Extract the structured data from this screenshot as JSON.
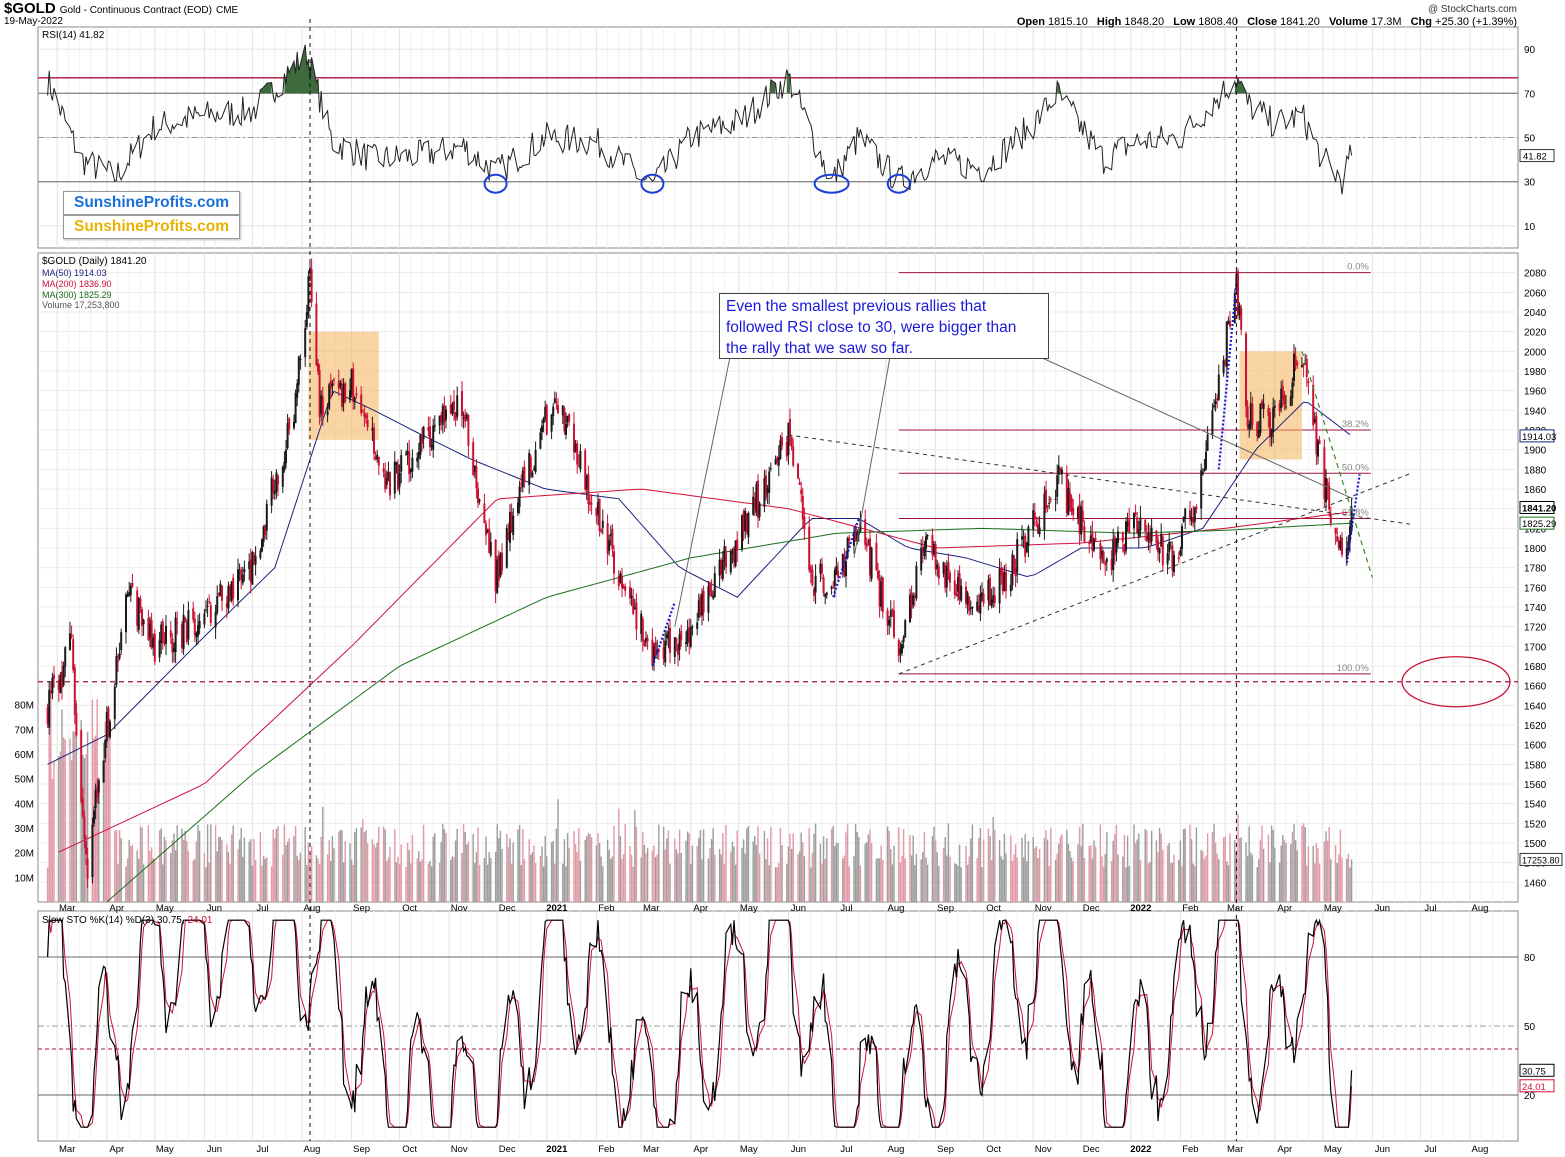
{
  "header": {
    "ticker": "$GOLD",
    "description": "Gold - Continuous Contract (EOD)",
    "exchange": "CME",
    "date": "19-May-2022",
    "open_label": "Open",
    "open": "1815.10",
    "high_label": "High",
    "high": "1848.20",
    "low_label": "Low",
    "low": "1808.40",
    "close_label": "Close",
    "close": "1841.20",
    "volume_label": "Volume",
    "volume": "17.3M",
    "chg_label": "Chg",
    "chg": "+25.30 (+1.39%)",
    "credit": "@ StockCharts.com"
  },
  "logos": {
    "line1": "SunshineProfits.com",
    "line2": "SunshineProfits.com"
  },
  "callout": "Even the smallest previous rallies that followed RSI close to 30, were bigger than the rally that we saw so far.",
  "legend": {
    "rsi": "RSI(14) 41.82",
    "price": "$GOLD (Daily) 1841.20",
    "ma50": "MA(50) 1914.03",
    "ma200": "MA(200) 1836.90",
    "ma300": "MA(300) 1825.29",
    "volume": "Volume 17,253,800",
    "sto_main": "Slow STO %K(14) %D(3) 30.75,",
    "sto_d": "24.01"
  },
  "colors": {
    "up": "#1a1a1a",
    "down": "#cc1133",
    "ma50": "#1a237e",
    "ma200": "#d0103a",
    "ma300": "#1b6e1b",
    "rsi_fill": "#3d6b3d",
    "sto_k": "#000000",
    "sto_d": "#d0103a",
    "callout_text": "#1a1ad8",
    "fib": "#a01040",
    "box": "#f5b25a",
    "circle": "#1a3fd8"
  },
  "chart_data": [
    {
      "type": "line",
      "name": "rsi_panel",
      "title": "RSI(14) 41.82",
      "ylim": [
        0,
        100
      ],
      "y_ticks": [
        10,
        30,
        50,
        70,
        90
      ],
      "reference_lines": [
        30,
        50,
        70,
        77
      ],
      "last_value_label": "41.82",
      "x": [
        "2020-02-24",
        "2020-03-16",
        "2020-04-06",
        "2020-05-01",
        "2020-06-01",
        "2020-07-01",
        "2020-08-04",
        "2020-08-20",
        "2020-09-15",
        "2020-10-15",
        "2020-11-10",
        "2020-11-30",
        "2020-12-31",
        "2021-02-01",
        "2021-03-08",
        "2021-04-01",
        "2021-05-03",
        "2021-06-01",
        "2021-06-28",
        "2021-07-15",
        "2021-08-09",
        "2021-09-01",
        "2021-10-01",
        "2021-11-01",
        "2021-11-16",
        "2021-12-15",
        "2022-01-03",
        "2022-02-01",
        "2022-03-08",
        "2022-03-15",
        "2022-04-01",
        "2022-04-18",
        "2022-05-01",
        "2022-05-13",
        "2022-05-19"
      ],
      "y": [
        76,
        40,
        32,
        55,
        60,
        62,
        88,
        48,
        40,
        42,
        46,
        34,
        50,
        48,
        28,
        50,
        58,
        77,
        30,
        50,
        30,
        40,
        36,
        56,
        70,
        40,
        48,
        50,
        77,
        65,
        56,
        60,
        40,
        31,
        41.82
      ],
      "marked_oversold": [
        "2020-11-30",
        "2021-03-08",
        "2021-06-28",
        "2021-08-09"
      ]
    },
    {
      "type": "line",
      "name": "price_panel",
      "title": "$GOLD (Daily) 1841.20",
      "ylim": [
        1440,
        2100
      ],
      "y_ticks": [
        1460,
        1480,
        1500,
        1520,
        1540,
        1560,
        1580,
        1600,
        1620,
        1640,
        1660,
        1680,
        1700,
        1720,
        1740,
        1760,
        1780,
        1800,
        1820,
        1840,
        1860,
        1880,
        1900,
        1920,
        1940,
        1960,
        1980,
        2000,
        2020,
        2040,
        2060,
        2080
      ],
      "x_ticks": [
        "Mar",
        "Apr",
        "May",
        "Jun",
        "Jul",
        "Aug",
        "Sep",
        "Oct",
        "Nov",
        "Dec",
        "2021",
        "Feb",
        "Mar",
        "Apr",
        "May",
        "Jun",
        "Jul",
        "Aug",
        "Sep",
        "Oct",
        "Nov",
        "Dec",
        "2022",
        "Feb",
        "Mar",
        "Apr",
        "May",
        "Jun",
        "Jul",
        "Aug"
      ],
      "last_value_labels": [
        "1914.03",
        "1841.20",
        "1825.29"
      ],
      "series": [
        {
          "name": "$GOLD (Daily)",
          "x": [
            "2020-02-24",
            "2020-03-10",
            "2020-03-19",
            "2020-04-14",
            "2020-05-01",
            "2020-06-01",
            "2020-07-01",
            "2020-07-27",
            "2020-08-06",
            "2020-08-12",
            "2020-09-01",
            "2020-09-24",
            "2020-10-15",
            "2020-11-09",
            "2020-11-30",
            "2020-12-15",
            "2021-01-06",
            "2021-02-01",
            "2021-03-08",
            "2021-03-31",
            "2021-04-20",
            "2021-05-10",
            "2021-06-01",
            "2021-06-17",
            "2021-06-29",
            "2021-07-15",
            "2021-08-09",
            "2021-08-25",
            "2021-09-29",
            "2021-10-15",
            "2021-11-16",
            "2021-12-15",
            "2022-01-03",
            "2022-01-28",
            "2022-02-15",
            "2022-03-08",
            "2022-03-15",
            "2022-04-01",
            "2022-04-18",
            "2022-05-01",
            "2022-05-13",
            "2022-05-19"
          ],
          "y": [
            1640,
            1700,
            1470,
            1760,
            1700,
            1730,
            1780,
            1940,
            2080,
            1940,
            1970,
            1860,
            1910,
            1950,
            1770,
            1860,
            1950,
            1840,
            1690,
            1710,
            1780,
            1840,
            1910,
            1770,
            1760,
            1820,
            1700,
            1800,
            1740,
            1770,
            1870,
            1780,
            1830,
            1790,
            1870,
            2070,
            1930,
            1930,
            2000,
            1870,
            1790,
            1841.2
          ]
        },
        {
          "name": "MA(50)",
          "x": [
            "2020-02-24",
            "2020-04-01",
            "2020-06-01",
            "2020-07-15",
            "2020-08-20",
            "2020-09-15",
            "2020-10-15",
            "2020-11-15",
            "2020-12-31",
            "2021-02-15",
            "2021-03-25",
            "2021-04-30",
            "2021-06-15",
            "2021-07-15",
            "2021-08-15",
            "2021-09-20",
            "2021-10-30",
            "2021-12-01",
            "2022-01-10",
            "2022-02-15",
            "2022-03-20",
            "2022-04-20",
            "2022-05-19"
          ],
          "y": [
            1580,
            1610,
            1710,
            1780,
            1960,
            1940,
            1915,
            1890,
            1860,
            1850,
            1780,
            1750,
            1830,
            1830,
            1800,
            1790,
            1770,
            1800,
            1800,
            1820,
            1900,
            1950,
            1914.03
          ]
        },
        {
          "name": "MA(200)",
          "x": [
            "2020-03-01",
            "2020-06-01",
            "2020-09-01",
            "2020-12-01",
            "2021-03-01",
            "2021-06-01",
            "2021-09-01",
            "2021-12-01",
            "2022-03-01",
            "2022-05-19"
          ],
          "y": [
            1490,
            1560,
            1700,
            1850,
            1860,
            1840,
            1800,
            1805,
            1820,
            1836.9
          ]
        },
        {
          "name": "MA(300)",
          "x": [
            "2020-04-01",
            "2020-07-01",
            "2020-10-01",
            "2021-01-01",
            "2021-04-01",
            "2021-07-01",
            "2021-10-01",
            "2022-01-01",
            "2022-03-01",
            "2022-05-19"
          ],
          "y": [
            1440,
            1570,
            1680,
            1750,
            1790,
            1815,
            1820,
            1815,
            1818,
            1825.29
          ]
        }
      ],
      "fibonacci": [
        {
          "label": "0.0%",
          "value": 2080
        },
        {
          "label": "38.2%",
          "value": 1920
        },
        {
          "label": "50.0%",
          "value": 1876
        },
        {
          "label": "61.8%",
          "value": 1830
        },
        {
          "label": "100.0%",
          "value": 1672
        }
      ],
      "support_line": 1664,
      "trendlines": [
        {
          "x": [
            "2021-06-01",
            "2022-05-31"
          ],
          "y": [
            1915,
            1830
          ]
        },
        {
          "x": [
            "2021-08-09",
            "2022-05-31"
          ],
          "y": [
            1672,
            1860
          ]
        }
      ]
    },
    {
      "type": "bar",
      "name": "volume",
      "title": "Volume 17,253,800",
      "ylim": [
        0,
        90000000
      ],
      "y_ticks": [
        "10M",
        "20M",
        "30M",
        "40M",
        "50M",
        "60M",
        "70M",
        "80M"
      ],
      "last_value_label": "17253.80",
      "x": [
        "2020-03-15",
        "2020-08-07",
        "2020-11-10",
        "2021-02-26",
        "2021-06-18",
        "2021-11-05",
        "2022-02-24",
        "2022-03-08",
        "2022-05-19"
      ],
      "values": [
        85000000,
        42000000,
        48000000,
        38000000,
        30000000,
        36000000,
        35000000,
        40000000,
        17253800
      ]
    },
    {
      "type": "line",
      "name": "stochastic",
      "title": "Slow STO %K(14) %D(3) 30.75, 24.01",
      "ylim": [
        0,
        100
      ],
      "y_ticks": [
        20,
        50,
        80
      ],
      "reference_lines": [
        20,
        40,
        50,
        80
      ],
      "last_value_labels": [
        "30.75",
        "24.01"
      ],
      "series": [
        {
          "name": "%K",
          "x": [
            "2020-02-24",
            "2020-03-20",
            "2020-05-01",
            "2020-07-30",
            "2020-09-25",
            "2020-11-30",
            "2021-01-06",
            "2021-03-08",
            "2021-06-01",
            "2021-06-30",
            "2021-08-09",
            "2021-11-16",
            "2021-12-15",
            "2022-03-08",
            "2022-03-25",
            "2022-04-18",
            "2022-05-13",
            "2022-05-19"
          ],
          "y": [
            90,
            15,
            88,
            92,
            18,
            12,
            90,
            15,
            92,
            12,
            14,
            95,
            10,
            95,
            18,
            90,
            15,
            30.75
          ]
        },
        {
          "name": "%D",
          "x": [
            "2020-02-24",
            "2020-03-20",
            "2020-05-01",
            "2020-07-30",
            "2020-09-25",
            "2020-11-30",
            "2021-01-06",
            "2021-03-08",
            "2021-06-01",
            "2021-06-30",
            "2021-08-09",
            "2021-11-16",
            "2021-12-15",
            "2022-03-08",
            "2022-03-25",
            "2022-04-18",
            "2022-05-13",
            "2022-05-19"
          ],
          "y": [
            85,
            20,
            82,
            88,
            22,
            16,
            85,
            20,
            88,
            16,
            18,
            90,
            14,
            90,
            22,
            85,
            17,
            24.01
          ]
        }
      ]
    }
  ]
}
